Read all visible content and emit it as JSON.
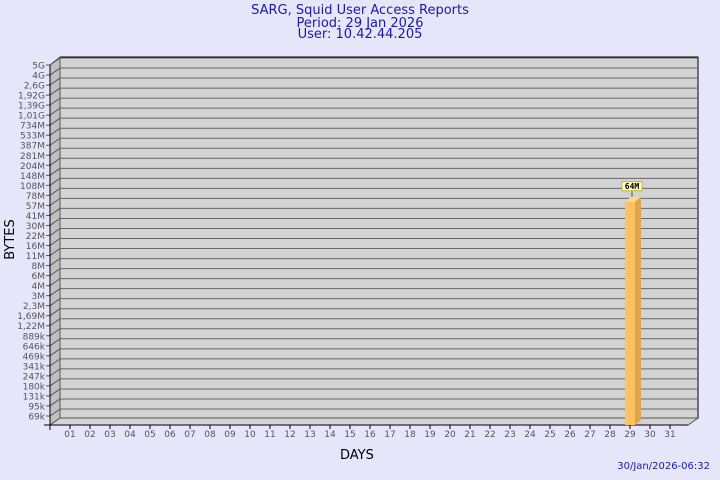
{
  "chart_data": {
    "type": "bar",
    "title": "SARG, Squid User Access Reports",
    "subtitle": [
      "Period: 29 Jan 2026",
      "User: 10.42.44.205"
    ],
    "xlabel": "DAYS",
    "ylabel": "BYTES",
    "y_scale": "log",
    "y_ticks": [
      "5G",
      "4G",
      "2,6G",
      "1,92G",
      "1,39G",
      "1,01G",
      "734M",
      "533M",
      "387M",
      "281M",
      "204M",
      "148M",
      "108M",
      "78M",
      "57M",
      "41M",
      "30M",
      "22M",
      "16M",
      "11M",
      "8M",
      "6M",
      "4M",
      "3M",
      "2,3M",
      "1,69M",
      "1,22M",
      "889k",
      "646k",
      "469k",
      "341k",
      "247k",
      "180k",
      "131k",
      "95k",
      "69k"
    ],
    "categories": [
      "01",
      "02",
      "03",
      "04",
      "05",
      "06",
      "07",
      "08",
      "09",
      "10",
      "11",
      "12",
      "13",
      "14",
      "15",
      "16",
      "17",
      "18",
      "19",
      "20",
      "21",
      "22",
      "23",
      "24",
      "25",
      "26",
      "27",
      "28",
      "29",
      "30",
      "31"
    ],
    "bars": [
      {
        "day": "29",
        "value": "64M",
        "level": "64M"
      }
    ],
    "grid": true,
    "colors": {
      "bar": "#fec265",
      "bar_side": "#e0a54a",
      "plot": "#d3d3d3",
      "title": "#1a1aa6"
    }
  },
  "footer": {
    "timestamp": "30/Jan/2026-06:32"
  }
}
